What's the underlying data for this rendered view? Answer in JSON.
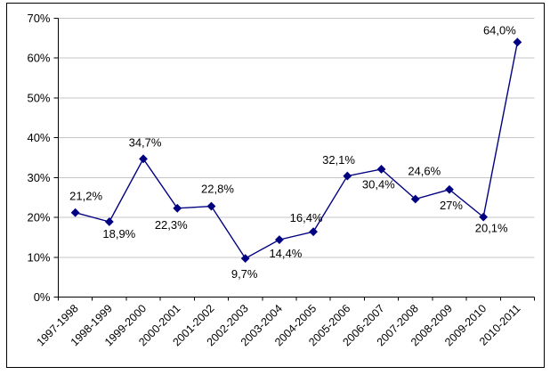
{
  "chart_data": {
    "type": "line",
    "title": "",
    "categories": [
      "1997-1998",
      "1998-1999",
      "1999-2000",
      "2000-2001",
      "2001-2002",
      "2002-2003",
      "2003-2004",
      "2004-2005",
      "2005-2006",
      "2006-2007",
      "2007-2008",
      "2008-2009",
      "2009-2010",
      "2010-2011"
    ],
    "series": [
      {
        "values": [
          21.2,
          18.9,
          34.7,
          22.3,
          22.8,
          9.7,
          14.4,
          16.4,
          30.4,
          32.1,
          24.6,
          27,
          20.1,
          64.0
        ],
        "point_labels": [
          "21,2%",
          "18,9%",
          "34,7%",
          "22,3%",
          "22,8%",
          "9,7%",
          "14,4%",
          "16,4%",
          "30,4%",
          "32,1%",
          "24,6%",
          "27%",
          "20,1%",
          "64,0%"
        ],
        "label_offsets": [
          [
            12,
            -14
          ],
          [
            11,
            18
          ],
          [
            2,
            -14
          ],
          [
            -7,
            23
          ],
          [
            7,
            -15
          ],
          [
            -1,
            22
          ],
          [
            7,
            20
          ],
          [
            -8,
            -11
          ],
          [
            35,
            14
          ],
          [
            -48,
            -6
          ],
          [
            10,
            -27
          ],
          [
            2,
            22
          ],
          [
            9,
            17
          ],
          [
            -20,
            -9
          ]
        ]
      }
    ],
    "xlabel": "",
    "ylabel": "",
    "ylim": [
      0,
      70
    ],
    "ytick_step": 10,
    "ytick_labels": [
      "0%",
      "10%",
      "20%",
      "30%",
      "40%",
      "50%",
      "60%",
      "70%"
    ],
    "grid": true,
    "legend": false,
    "decimal_separator": ",",
    "colors": {
      "line": "#000080",
      "marker": "#000080",
      "gridline": "#c6c6c6",
      "axis": "#000000",
      "label_text": "#000000",
      "frame_border": "#000000",
      "background": "#ffffff"
    },
    "marker_shape": "diamond",
    "x_label_rotation_deg": -45
  }
}
